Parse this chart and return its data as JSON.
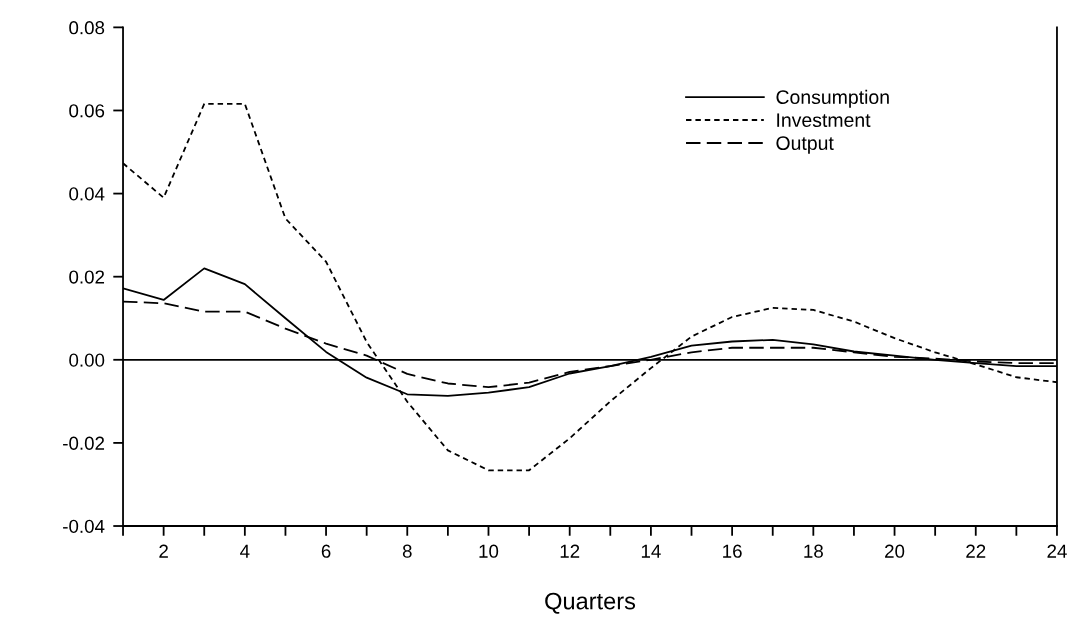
{
  "chart_data": {
    "type": "line",
    "xlabel": "Quarters",
    "x": [
      1,
      2,
      3,
      4,
      5,
      6,
      7,
      8,
      9,
      10,
      11,
      12,
      13,
      14,
      15,
      16,
      17,
      18,
      19,
      20,
      21,
      22,
      23,
      24
    ],
    "series": [
      {
        "name": "Consumption",
        "color": "#000000",
        "line_style": "solid",
        "values": [
          0.0172,
          0.0144,
          0.022,
          0.0182,
          0.01,
          0.0019,
          -0.0043,
          -0.0083,
          -0.0087,
          -0.0079,
          -0.0066,
          -0.0033,
          -0.0015,
          0.0007,
          0.0034,
          0.0044,
          0.0048,
          0.0037,
          0.002,
          0.001,
          0.0,
          -0.0008,
          -0.0015,
          -0.0015
        ]
      },
      {
        "name": "Investment",
        "color": "#000000",
        "line_style": "dotted",
        "values": [
          0.0473,
          0.039,
          0.0616,
          0.0616,
          0.034,
          0.0236,
          0.0043,
          -0.0101,
          -0.0218,
          -0.0266,
          -0.0266,
          -0.0189,
          -0.01,
          -0.002,
          0.0056,
          0.0103,
          0.0125,
          0.012,
          0.0092,
          0.0052,
          0.0018,
          -0.0011,
          -0.0042,
          -0.0054
        ]
      },
      {
        "name": "Output",
        "color": "#000000",
        "line_style": "dashed",
        "values": [
          0.014,
          0.0136,
          0.0116,
          0.0116,
          0.0075,
          0.0039,
          0.001,
          -0.0034,
          -0.0057,
          -0.0066,
          -0.0055,
          -0.0029,
          -0.0015,
          0.0,
          0.0018,
          0.0029,
          0.0029,
          0.0029,
          0.0018,
          0.0007,
          0.0003,
          -0.0004,
          -0.0008,
          -0.0008
        ]
      }
    ],
    "xlim": [
      1,
      24
    ],
    "xticks": [
      {
        "value": 1,
        "label": null
      },
      2,
      {
        "value": 3,
        "label": null
      },
      4,
      {
        "value": 5,
        "label": null
      },
      6,
      {
        "value": 7,
        "label": null
      },
      8,
      {
        "value": 9,
        "label": null
      },
      10,
      {
        "value": 11,
        "label": null
      },
      12,
      {
        "value": 13,
        "label": null
      },
      14,
      {
        "value": 15,
        "label": null
      },
      16,
      {
        "value": 17,
        "label": null
      },
      18,
      {
        "value": 19,
        "label": null
      },
      20,
      {
        "value": 21,
        "label": null
      },
      22,
      {
        "value": 23,
        "label": null
      },
      24
    ],
    "ylim": [
      -0.04,
      0.08
    ],
    "yticks": [
      {
        "value": -0.04,
        "label": "-0.04"
      },
      {
        "value": -0.02,
        "label": "-0.02"
      },
      {
        "value": 0.0,
        "label": "0.00"
      },
      {
        "value": 0.02,
        "label": "0.02"
      },
      {
        "value": 0.04,
        "label": "0.04"
      },
      {
        "value": 0.06,
        "label": "0.06"
      },
      {
        "value": 0.08,
        "label": "0.08"
      }
    ],
    "ref_lines": [
      {
        "axis": "y",
        "value": 0,
        "color": "#000000",
        "line_style": "solid"
      }
    ],
    "grid": false,
    "legend": "top right",
    "marker": "none"
  }
}
